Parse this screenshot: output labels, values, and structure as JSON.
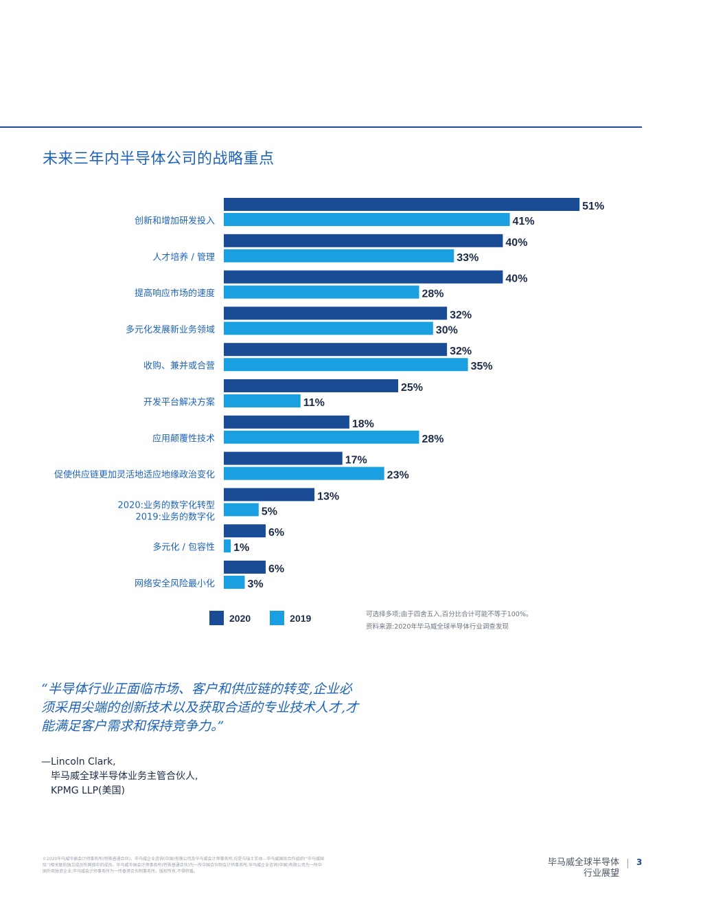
{
  "title": "未来三年内半导体公司的战略重点",
  "legend": [
    {
      "label": "2020",
      "color": "#1a4c95"
    },
    {
      "label": "2019",
      "color": "#1aa0e0"
    }
  ],
  "notes": {
    "line1": "可选择多项;由于四舍五入,百分比合计可能不等于100%。",
    "line2": "资料来源:2020年毕马威全球半导体行业调查发现"
  },
  "quote": "“半导体行业正面临市场、客户和供应链的转变,企业必须采用尖端的创新技术以及获取合适的专业技术人才,才能满足客户需求和保持竞争力。”",
  "attribution": {
    "line1": "—Lincoln Clark,",
    "line2": "毕马威全球半导体业务主管合伙人,",
    "line3": "KPMG LLP(美国)"
  },
  "copyright": "©2020毕马威华振会计师事务所(特殊普通合伙)、毕马威企业咨询(中国)有限公司及毕马威会计师事务所,均是与瑞士实体—毕马威国际合作组织(“毕马威国际”)相关联的独立成员所网络中的成员。毕马威华振会计师事务所(特殊普通合伙)为一所中国合伙制会计师事务所;毕马威企业咨询(中国)有限公司为一所中国外商独资企业;毕马威会计师事务所为一所香港合伙制事务所。版权所有,不得转载。",
  "footer": {
    "line1": "毕马威全球半导体",
    "line2": "行业展望",
    "page": "3"
  },
  "chart_data": {
    "type": "bar",
    "orientation": "horizontal",
    "title": "未来三年内半导体公司的战略重点",
    "categories": [
      [
        "创新和增加研发投入"
      ],
      [
        "人才培养 / 管理"
      ],
      [
        "提高响应市场的速度"
      ],
      [
        "多元化发展新业务领域"
      ],
      [
        "收购、兼并或合营"
      ],
      [
        "开发平台解决方案"
      ],
      [
        "应用颠覆性技术"
      ],
      [
        "促使供应链更加灵活地适应地缘政治变化"
      ],
      [
        "2020:业务的数字化转型",
        "2019:业务的数字化"
      ],
      [
        "多元化 / 包容性"
      ],
      [
        "网络安全风险最小化"
      ]
    ],
    "series": [
      {
        "name": "2020",
        "color": "#1a4c95",
        "values": [
          51,
          40,
          40,
          32,
          32,
          25,
          18,
          17,
          13,
          6,
          6
        ]
      },
      {
        "name": "2019",
        "color": "#1aa0e0",
        "values": [
          41,
          33,
          28,
          30,
          35,
          11,
          28,
          23,
          5,
          1,
          3
        ]
      }
    ],
    "unit": "%",
    "xlim": [
      0,
      60
    ],
    "grid": false,
    "legend_position": "bottom-left"
  }
}
